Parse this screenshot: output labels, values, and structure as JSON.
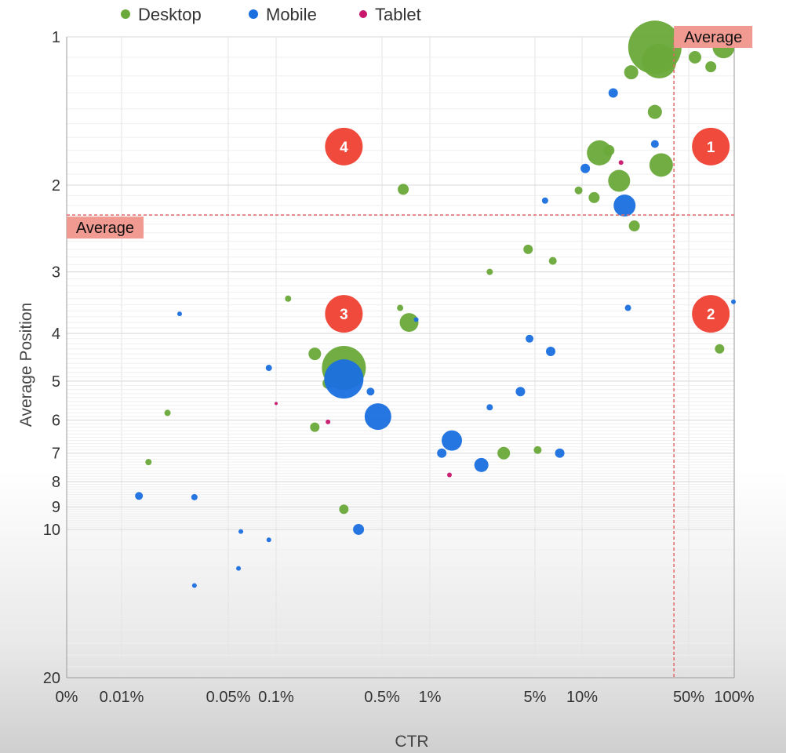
{
  "chart_data": {
    "type": "scatter",
    "title": "",
    "xlabel": "CTR",
    "ylabel": "Average Position",
    "x_scale": "log",
    "y_scale": "log",
    "ylim": [
      1,
      20
    ],
    "x_ticks": [
      {
        "label": "0%",
        "value": 0
      },
      {
        "label": "0.01%",
        "value": 0.0001
      },
      {
        "label": "0.05%",
        "value": 0.0005
      },
      {
        "label": "0.1%",
        "value": 0.001
      },
      {
        "label": "0.5%",
        "value": 0.005
      },
      {
        "label": "1%",
        "value": 0.01
      },
      {
        "label": "5%",
        "value": 0.05
      },
      {
        "label": "10%",
        "value": 0.1
      },
      {
        "label": "50%",
        "value": 0.5
      },
      {
        "label": "100%",
        "value": 1
      }
    ],
    "y_ticks": [
      {
        "label": "1",
        "value": 1
      },
      {
        "label": "2",
        "value": 2
      },
      {
        "label": "3",
        "value": 3
      },
      {
        "label": "4",
        "value": 4
      },
      {
        "label": "5",
        "value": 5
      },
      {
        "label": "6",
        "value": 6
      },
      {
        "label": "7",
        "value": 7
      },
      {
        "label": "8",
        "value": 8
      },
      {
        "label": "9",
        "value": 9
      },
      {
        "label": "10",
        "value": 10
      },
      {
        "label": "20",
        "value": 20
      }
    ],
    "grid": true,
    "legend_position": "top-left",
    "series": [
      {
        "name": "Desktop",
        "color": "#6aa93a",
        "points": [
          {
            "x": 0.3,
            "y": 1.05,
            "size": 34
          },
          {
            "x": 0.32,
            "y": 1.12,
            "size": 22
          },
          {
            "x": 0.85,
            "y": 1.05,
            "size": 14
          },
          {
            "x": 0.55,
            "y": 1.1,
            "size": 8
          },
          {
            "x": 0.7,
            "y": 1.15,
            "size": 7
          },
          {
            "x": 0.21,
            "y": 1.18,
            "size": 9
          },
          {
            "x": 0.3,
            "y": 1.42,
            "size": 9
          },
          {
            "x": 0.13,
            "y": 1.72,
            "size": 16
          },
          {
            "x": 0.15,
            "y": 1.7,
            "size": 7
          },
          {
            "x": 0.33,
            "y": 1.82,
            "size": 15
          },
          {
            "x": 0.175,
            "y": 1.96,
            "size": 14
          },
          {
            "x": 0.0068,
            "y": 2.04,
            "size": 7
          },
          {
            "x": 0.12,
            "y": 2.12,
            "size": 7
          },
          {
            "x": 0.095,
            "y": 2.05,
            "size": 5
          },
          {
            "x": 0.22,
            "y": 2.42,
            "size": 7
          },
          {
            "x": 0.045,
            "y": 2.7,
            "size": 6
          },
          {
            "x": 0.065,
            "y": 2.85,
            "size": 5
          },
          {
            "x": 0.0074,
            "y": 3.8,
            "size": 12
          },
          {
            "x": 0.0028,
            "y": 4.7,
            "size": 28
          },
          {
            "x": 0.0018,
            "y": 4.4,
            "size": 8
          },
          {
            "x": 0.0022,
            "y": 5.05,
            "size": 7
          },
          {
            "x": 0.8,
            "y": 4.3,
            "size": 6
          },
          {
            "x": 0.031,
            "y": 7.0,
            "size": 8
          },
          {
            "x": 0.0002,
            "y": 5.8,
            "size": 4
          },
          {
            "x": 0.00015,
            "y": 7.3,
            "size": 4
          },
          {
            "x": 0.0018,
            "y": 6.2,
            "size": 6
          },
          {
            "x": 0.052,
            "y": 6.9,
            "size": 5
          },
          {
            "x": 0.0028,
            "y": 9.1,
            "size": 6
          },
          {
            "x": 0.0065,
            "y": 3.55,
            "size": 4
          },
          {
            "x": 0.025,
            "y": 3.0,
            "size": 4
          },
          {
            "x": 0.0012,
            "y": 3.4,
            "size": 4
          }
        ]
      },
      {
        "name": "Mobile",
        "color": "#1a6fe0",
        "points": [
          {
            "x": 0.0028,
            "y": 4.95,
            "size": 25
          },
          {
            "x": 0.0047,
            "y": 5.9,
            "size": 17
          },
          {
            "x": 0.014,
            "y": 6.6,
            "size": 13
          },
          {
            "x": 0.022,
            "y": 7.4,
            "size": 9
          },
          {
            "x": 0.19,
            "y": 2.2,
            "size": 14
          },
          {
            "x": 0.16,
            "y": 1.3,
            "size": 6
          },
          {
            "x": 0.105,
            "y": 1.85,
            "size": 6
          },
          {
            "x": 0.0035,
            "y": 10.0,
            "size": 7
          },
          {
            "x": 0.0042,
            "y": 5.25,
            "size": 5
          },
          {
            "x": 0.012,
            "y": 7.0,
            "size": 6
          },
          {
            "x": 0.00013,
            "y": 8.55,
            "size": 5
          },
          {
            "x": 0.00024,
            "y": 3.65,
            "size": 3
          },
          {
            "x": 0.0009,
            "y": 4.7,
            "size": 4
          },
          {
            "x": 0.046,
            "y": 4.1,
            "size": 5
          },
          {
            "x": 0.063,
            "y": 4.35,
            "size": 6
          },
          {
            "x": 0.025,
            "y": 5.65,
            "size": 4
          },
          {
            "x": 0.04,
            "y": 5.25,
            "size": 6
          },
          {
            "x": 0.072,
            "y": 7.0,
            "size": 6
          },
          {
            "x": 0.0082,
            "y": 3.75,
            "size": 3
          },
          {
            "x": 1.0,
            "y": 3.45,
            "size": 3
          },
          {
            "x": 0.0003,
            "y": 8.6,
            "size": 4
          },
          {
            "x": 0.0003,
            "y": 13.0,
            "size": 3
          },
          {
            "x": 0.00058,
            "y": 12.0,
            "size": 3
          },
          {
            "x": 0.0006,
            "y": 10.1,
            "size": 3
          },
          {
            "x": 0.0009,
            "y": 10.5,
            "size": 3
          },
          {
            "x": 0.058,
            "y": 2.15,
            "size": 4
          },
          {
            "x": 0.3,
            "y": 1.65,
            "size": 5
          },
          {
            "x": 0.2,
            "y": 3.55,
            "size": 4
          }
        ]
      },
      {
        "name": "Tablet",
        "color": "#c8176b",
        "points": [
          {
            "x": 0.18,
            "y": 1.8,
            "size": 3
          },
          {
            "x": 0.0022,
            "y": 6.05,
            "size": 3
          },
          {
            "x": 0.0135,
            "y": 7.75,
            "size": 3
          },
          {
            "x": 0.001,
            "y": 5.55,
            "size": 2
          }
        ]
      }
    ],
    "reference_lines": [
      {
        "axis": "x",
        "value": 0.4,
        "label": "Average",
        "label_position": "top"
      },
      {
        "axis": "y",
        "value": 2.3,
        "label": "Average",
        "label_position": "left"
      }
    ],
    "quadrants": [
      {
        "label": "1",
        "x": 0.7,
        "y": 1.67
      },
      {
        "label": "2",
        "x": 0.7,
        "y": 3.65
      },
      {
        "label": "3",
        "x": 0.0028,
        "y": 3.65
      },
      {
        "label": "4",
        "x": 0.0028,
        "y": 1.67
      }
    ],
    "colors": {
      "reference_line": "#e06666",
      "average_label_bg": "#f09a92",
      "quadrant_badge": "#f04a3c"
    }
  }
}
